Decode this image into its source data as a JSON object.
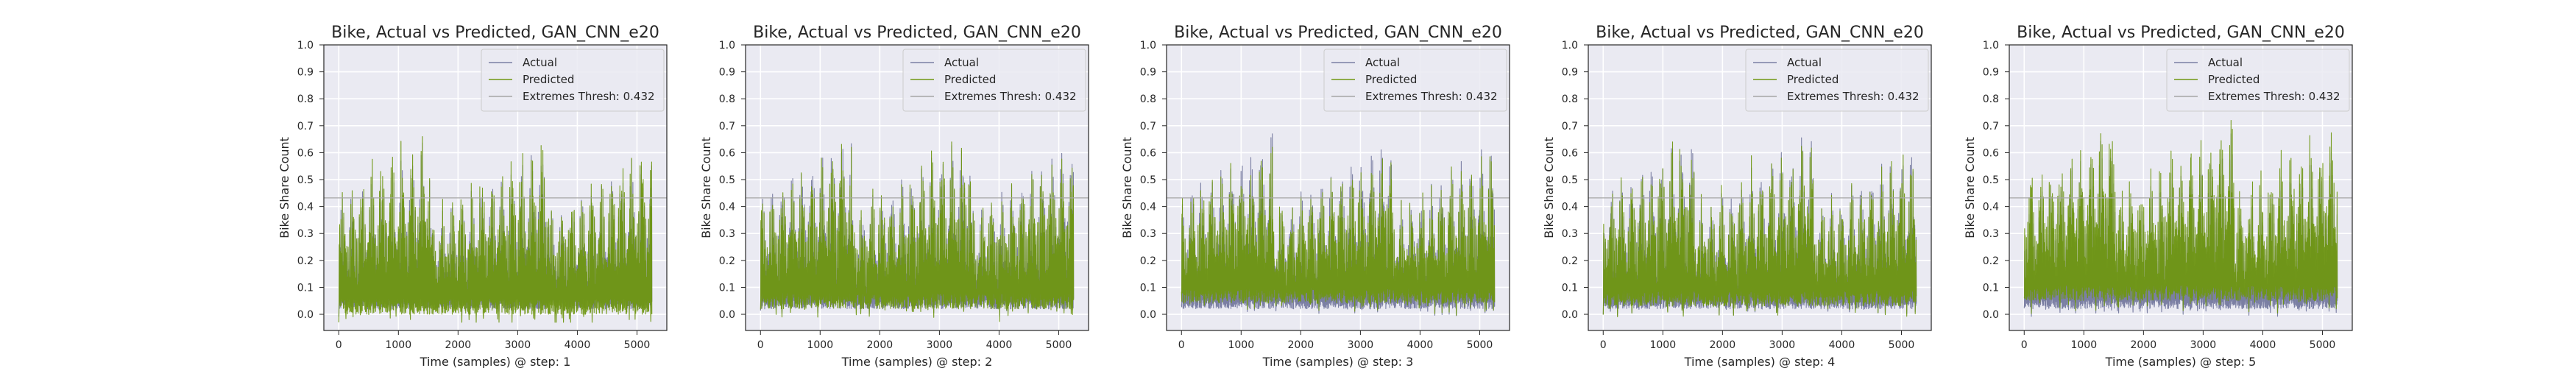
{
  "colors": {
    "background": "#ffffff",
    "plot_bg": "#eaeaf2",
    "grid": "#ffffff",
    "actual": "#7b7fa3",
    "predicted": "#6f9712",
    "threshold": "#a6a6a6",
    "text": "#262626"
  },
  "chart_data": [
    {
      "type": "line",
      "title": "Bike, Actual vs Predicted, GAN_CNN_e20",
      "xlabel": "Time (samples) @ step: 1",
      "ylabel": "Bike Share Count",
      "xlim": [
        -250,
        5500
      ],
      "ylim": [
        -0.06,
        1.0
      ],
      "xticks": [
        0,
        1000,
        2000,
        3000,
        4000,
        5000
      ],
      "yticks": [
        0.0,
        0.1,
        0.2,
        0.3,
        0.4,
        0.5,
        0.6,
        0.7,
        0.8,
        0.9,
        1.0
      ],
      "grid": true,
      "legend_position": "top-right",
      "legend": [
        "Actual",
        "Predicted",
        "Extremes Thresh: 0.432"
      ],
      "threshold": 0.432,
      "x_range": [
        0,
        5250
      ],
      "series": [
        {
          "name": "Actual",
          "peak_max": 0.64,
          "base": 0.02
        },
        {
          "name": "Predicted",
          "peak_max": 0.66,
          "base": 0.01
        }
      ]
    },
    {
      "type": "line",
      "title": "Bike, Actual vs Predicted, GAN_CNN_e20",
      "xlabel": "Time (samples) @ step: 2",
      "ylabel": "Bike Share Count",
      "xlim": [
        -250,
        5500
      ],
      "ylim": [
        -0.06,
        1.0
      ],
      "xticks": [
        0,
        1000,
        2000,
        3000,
        4000,
        5000
      ],
      "yticks": [
        0.0,
        0.1,
        0.2,
        0.3,
        0.4,
        0.5,
        0.6,
        0.7,
        0.8,
        0.9,
        1.0
      ],
      "grid": true,
      "legend_position": "top-right",
      "legend": [
        "Actual",
        "Predicted",
        "Extremes Thresh: 0.432"
      ],
      "threshold": 0.432,
      "x_range": [
        0,
        5250
      ],
      "series": [
        {
          "name": "Actual",
          "peak_max": 0.67,
          "base": 0.02
        },
        {
          "name": "Predicted",
          "peak_max": 0.64,
          "base": 0.03
        }
      ]
    },
    {
      "type": "line",
      "title": "Bike, Actual vs Predicted, GAN_CNN_e20",
      "xlabel": "Time (samples) @ step: 3",
      "ylabel": "Bike Share Count",
      "xlim": [
        -250,
        5500
      ],
      "ylim": [
        -0.06,
        1.0
      ],
      "xticks": [
        0,
        1000,
        2000,
        3000,
        4000,
        5000
      ],
      "yticks": [
        0.0,
        0.1,
        0.2,
        0.3,
        0.4,
        0.5,
        0.6,
        0.7,
        0.8,
        0.9,
        1.0
      ],
      "grid": true,
      "legend_position": "top-right",
      "legend": [
        "Actual",
        "Predicted",
        "Extremes Thresh: 0.432"
      ],
      "threshold": 0.432,
      "x_range": [
        0,
        5250
      ],
      "series": [
        {
          "name": "Actual",
          "peak_max": 0.67,
          "base": 0.02
        },
        {
          "name": "Predicted",
          "peak_max": 0.62,
          "base": 0.05
        }
      ]
    },
    {
      "type": "line",
      "title": "Bike, Actual vs Predicted, GAN_CNN_e20",
      "xlabel": "Time (samples) @ step: 4",
      "ylabel": "Bike Share Count",
      "xlim": [
        -250,
        5500
      ],
      "ylim": [
        -0.06,
        1.0
      ],
      "xticks": [
        0,
        1000,
        2000,
        3000,
        4000,
        5000
      ],
      "yticks": [
        0.0,
        0.1,
        0.2,
        0.3,
        0.4,
        0.5,
        0.6,
        0.7,
        0.8,
        0.9,
        1.0
      ],
      "grid": true,
      "legend_position": "top-right",
      "legend": [
        "Actual",
        "Predicted",
        "Extremes Thresh: 0.432"
      ],
      "threshold": 0.432,
      "x_range": [
        0,
        5250
      ],
      "series": [
        {
          "name": "Actual",
          "peak_max": 0.67,
          "base": 0.02
        },
        {
          "name": "Predicted",
          "peak_max": 0.64,
          "base": 0.04
        }
      ]
    },
    {
      "type": "line",
      "title": "Bike, Actual vs Predicted, GAN_CNN_e20",
      "xlabel": "Time (samples) @ step: 5",
      "ylabel": "Bike Share Count",
      "xlim": [
        -250,
        5500
      ],
      "ylim": [
        -0.06,
        1.0
      ],
      "xticks": [
        0,
        1000,
        2000,
        3000,
        4000,
        5000
      ],
      "yticks": [
        0.0,
        0.1,
        0.2,
        0.3,
        0.4,
        0.5,
        0.6,
        0.7,
        0.8,
        0.9,
        1.0
      ],
      "grid": true,
      "legend_position": "top-right",
      "legend": [
        "Actual",
        "Predicted",
        "Extremes Thresh: 0.432"
      ],
      "threshold": 0.432,
      "x_range": [
        0,
        5250
      ],
      "series": [
        {
          "name": "Actual",
          "peak_max": 0.67,
          "base": 0.02
        },
        {
          "name": "Predicted",
          "peak_max": 0.72,
          "base": 0.06
        }
      ]
    }
  ]
}
